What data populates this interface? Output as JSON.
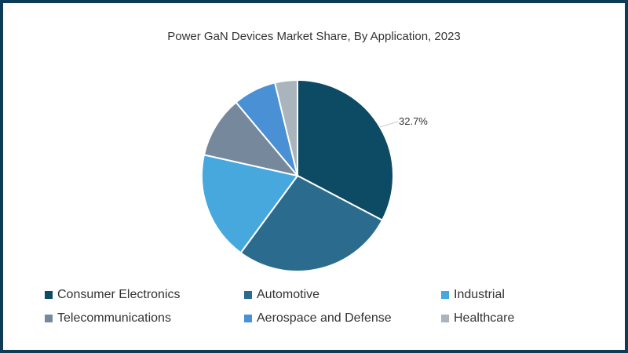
{
  "chart_data": {
    "type": "pie",
    "title": "Power GaN Devices Market Share, By Application, 2023",
    "categories": [
      "Consumer Electronics",
      "Automotive",
      "Industrial",
      "Telecommunications",
      "Aerospace and Defense",
      "Healthcare"
    ],
    "values": [
      32.7,
      27.4,
      18.4,
      10.4,
      7.3,
      3.8
    ],
    "colors": [
      "#0d4a63",
      "#2b6c8e",
      "#46a8dc",
      "#76889c",
      "#4a90d4",
      "#a9b4bd"
    ],
    "annotations": [
      {
        "category": "Consumer Electronics",
        "label": "32.7%"
      }
    ],
    "legend_position": "bottom"
  },
  "labels": {
    "title": "Power GaN Devices Market Share, By Application, 2023",
    "annotation": "32.7%",
    "legend": [
      "Consumer Electronics",
      "Automotive",
      "Industrial",
      "Telecommunications",
      "Aerospace and Defense",
      "Healthcare"
    ]
  }
}
